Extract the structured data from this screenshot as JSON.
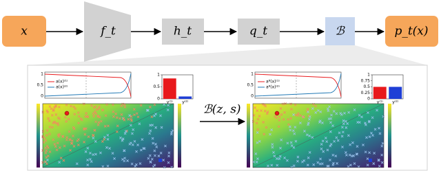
{
  "nodes": {
    "input": "x",
    "encoder": "f_t",
    "hidden": "h_t",
    "quantized": "q_t",
    "bridge": "ℬ",
    "output": "p_t(x)"
  },
  "zoom_label": "ℬ(z, s)",
  "panels": [
    {
      "line_legend": [
        "a(x)⁽¹⁾",
        "a(x)⁽²⁾"
      ],
      "line_yticks": [
        "1",
        "0.5",
        "0"
      ],
      "bars": {
        "categories": [
          "y⁽¹⁾",
          "y⁽²⁾"
        ],
        "values": [
          0.85,
          0.1
        ],
        "colors": [
          "#e8191c",
          "#1f3fd6"
        ],
        "ylim": [
          0,
          1
        ],
        "yticks": [
          0,
          0.5,
          1
        ]
      }
    },
    {
      "line_legend": [
        "aᴮ(x)⁽¹⁾",
        "aᴮ(x)⁽²⁾"
      ],
      "line_yticks": [
        "1",
        "0.5",
        "0"
      ],
      "bars": {
        "categories": [
          "y⁽¹⁾",
          "y⁽²⁾"
        ],
        "values": [
          0.5,
          0.5
        ],
        "colors": [
          "#e8191c",
          "#1f3fd6"
        ],
        "ylim": [
          0,
          1
        ],
        "yticks": [
          0,
          0.25,
          0.5,
          0.75,
          1
        ]
      }
    }
  ]
}
